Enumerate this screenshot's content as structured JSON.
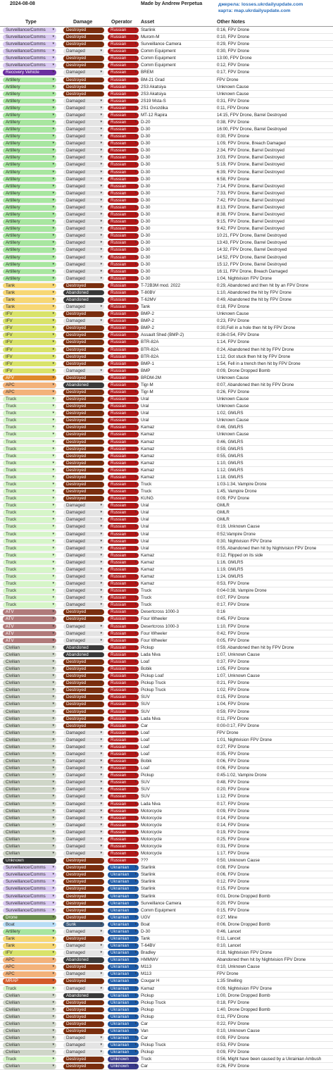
{
  "header": {
    "date": "2024-08-08",
    "author": "Made by Andrew Perpetua",
    "link1": "джерела: losses.ukrdailyupdate.com",
    "link2": "карта: map.ukrdailyupdate.com"
  },
  "columns": [
    "Type",
    "Damage",
    "Operator",
    "Asset",
    "Other Notes"
  ],
  "colors": {
    "type": {
      "Surveillance/Comms": "#d9c9f0",
      "Recovery Vehicle": "#6b2fa0",
      "Artillery": "#a8e6a0",
      "Tank": "#f7d774",
      "IFV": "#d9e36a",
      "AFV": "#e08a2c",
      "APC": "#f3b27a",
      "Truck": "#d6f5c8",
      "ATV": "#b07a7a",
      "Civilian": "#cfd6c8",
      "Unknown": "#333333",
      "Drone": "#6b8e4e",
      "Boat": "#b7dcf5",
      "MRAP": "#d35b2a"
    },
    "damage": {
      "Destroyed": "#7a2e0e",
      "Damaged": "#e4e4e4",
      "Abandoned": "#3a3a3a",
      "Sunk": "#3d5a7a"
    },
    "operator": {
      "Russian": "#b01818",
      "Ukrainian": "#1d5aa6",
      "Unknown": "#3a3a8a"
    }
  },
  "rows": [
    [
      "Surveillance/Comms",
      "Destroyed",
      "Russian",
      "Starlink",
      "0:16, FPV Drone"
    ],
    [
      "Surveillance/Comms",
      "Destroyed",
      "Russian",
      "Murom-M",
      "0:10, FPV Drone"
    ],
    [
      "Surveillance/Comms",
      "Destroyed",
      "Russian",
      "Surveillance Camera",
      "0:29, FPV Drone"
    ],
    [
      "Surveillance/Comms",
      "Damaged",
      "Russian",
      "Comm Equipment",
      "0:30, FPV Drone"
    ],
    [
      "Surveillance/Comms",
      "Destroyed",
      "Russian",
      "Comm Equipment",
      "13:00, FPV Drone"
    ],
    [
      "Surveillance/Comms",
      "Destroyed",
      "Russian",
      "Comm Equipment",
      "0:12, FPV Drone"
    ],
    [
      "Recovery Vehicle",
      "Damaged",
      "Russian",
      "BREM",
      "0:17, FPV Drone"
    ],
    [
      "Artillery",
      "Destroyed",
      "Russian",
      "BM-21 Grad",
      "FPV Drone"
    ],
    [
      "Artillery",
      "Destroyed",
      "Russian",
      "2S3 Akatsiya",
      "Unknown Cause"
    ],
    [
      "Artillery",
      "Destroyed",
      "Russian",
      "2S3 Akatsiya",
      "Unknown Cause"
    ],
    [
      "Artillery",
      "Damaged",
      "Russian",
      "2S19 Msta-S",
      "0:31, FPV Drone"
    ],
    [
      "Artillery",
      "Damaged",
      "Russian",
      "2S1 Gvozdika",
      "0:11, FPV Drone"
    ],
    [
      "Artillery",
      "Damaged",
      "Russian",
      "MT-12 Rapira",
      "14:15, FPV Drone, Barrel Destroyed"
    ],
    [
      "Artillery",
      "Damaged",
      "Russian",
      "D-20",
      "0:38, FPV Drone"
    ],
    [
      "Artillery",
      "Damaged",
      "Russian",
      "D-30",
      "16:00, FPV Drone, Barrel Destroyed"
    ],
    [
      "Artillery",
      "Damaged",
      "Russian",
      "D-30",
      "0:30, FPV Drone"
    ],
    [
      "Artillery",
      "Damaged",
      "Russian",
      "D-30",
      "1:09, FPV Drone, Breach Damaged"
    ],
    [
      "Artillery",
      "Damaged",
      "Russian",
      "D-30",
      "2:34, FPV Drone, Barrel Destroyed"
    ],
    [
      "Artillery",
      "Damaged",
      "Russian",
      "D-30",
      "3:03, FPV Drone, Barrel Destroyed"
    ],
    [
      "Artillery",
      "Damaged",
      "Russian",
      "D-30",
      "5:19, FPV Drone, Barrel Destroyed"
    ],
    [
      "Artillery",
      "Damaged",
      "Russian",
      "D-30",
      "6:39, FPV Drone, Barrel Destroyed"
    ],
    [
      "Artillery",
      "Damaged",
      "Russian",
      "D-30",
      "6:58, FPV Drone"
    ],
    [
      "Artillery",
      "Damaged",
      "Russian",
      "D-30",
      "7:14, FPV Drone, Barrel Destroyed"
    ],
    [
      "Artillery",
      "Damaged",
      "Russian",
      "D-30",
      "7:33, FPV Drone, Barrel Destroyed"
    ],
    [
      "Artillery",
      "Damaged",
      "Russian",
      "D-30",
      "7:42, FPV Drone, Barrel Destroyed"
    ],
    [
      "Artillery",
      "Damaged",
      "Russian",
      "D-30",
      "8:13, FPV Drone, Barrel Destroyed"
    ],
    [
      "Artillery",
      "Damaged",
      "Russian",
      "D-30",
      "8:38, FPV Drone, Barrel Destroyed"
    ],
    [
      "Artillery",
      "Damaged",
      "Russian",
      "D-30",
      "9:15, FPV Drone, Barrel Destroyed"
    ],
    [
      "Artillery",
      "Damaged",
      "Russian",
      "D-30",
      "9:42, FPV Drone, Barrel Destroyed"
    ],
    [
      "Artillery",
      "Damaged",
      "Russian",
      "D-30",
      "10:21, FPV Drone, Barrel Destroyed"
    ],
    [
      "Artillery",
      "Damaged",
      "Russian",
      "D-30",
      "13:43, FPV Drone, Barrel Destroyed"
    ],
    [
      "Artillery",
      "Damaged",
      "Russian",
      "D-30",
      "14:32, FPV Drone, Barrel Destroyed"
    ],
    [
      "Artillery",
      "Damaged",
      "Russian",
      "D-30",
      "14:52, FPV Drone, Barrel Destroyed"
    ],
    [
      "Artillery",
      "Damaged",
      "Russian",
      "D-30",
      "15:12, FPV Drone, Barrel Destroyed"
    ],
    [
      "Artillery",
      "Damaged",
      "Russian",
      "D-30",
      "16:11, FPV Drone, Breach Damaged"
    ],
    [
      "Artillery",
      "Damaged",
      "Russian",
      "D-30",
      "1:04, Nightvision FPV Drone"
    ],
    [
      "Tank",
      "Destroyed",
      "Russian",
      "T-72B3M mod. 2022",
      "0:29, Abandoned and then hit by an FPV Drone"
    ],
    [
      "Tank",
      "Abandoned",
      "Russian",
      "T-80BV",
      "1:10, Abandoned the hit by FPV Drone"
    ],
    [
      "Tank",
      "Abandoned",
      "Russian",
      "T-62MV",
      "0:49, Abandoned the hit by FPV Drone"
    ],
    [
      "Tank",
      "Damaged",
      "Russian",
      "Tank",
      "0:18, FPV Drone"
    ],
    [
      "IFV",
      "Destroyed",
      "Russian",
      "BMP-2",
      "Unknown Cause"
    ],
    [
      "IFV",
      "Damaged",
      "Russian",
      "BMP-2",
      "0:23, FPV Drone"
    ],
    [
      "IFV",
      "Destroyed",
      "Russian",
      "BMP-2",
      "0:30,Fell in a hole then hit by FPV Drone"
    ],
    [
      "IFV",
      "Destroyed",
      "Russian",
      "Assault Shed (BMP-2)",
      "0:36-0:54, FPV Drone"
    ],
    [
      "IFV",
      "Destroyed",
      "Russian",
      "BTR-82A",
      "1:14, FPV Drone"
    ],
    [
      "IFV",
      "Destroyed",
      "Russian",
      "BTR-82A",
      "0:24, Abandoned then hit by FPV Drone"
    ],
    [
      "IFV",
      "Destroyed",
      "Russian",
      "BTR-82A",
      "1:12, Got stuck then hit by FPV Drone"
    ],
    [
      "IFV",
      "Destroyed",
      "Russian",
      "BMP-1",
      "1:54, Fell in a trench then hit by FPV Drone"
    ],
    [
      "IFV",
      "Damaged",
      "Russian",
      "BMP",
      "0:09, Drone Dropped Bomb"
    ],
    [
      "AFV",
      "Destroyed",
      "Russian",
      "BRDM-2M",
      "Unknown Cause"
    ],
    [
      "APC",
      "Abandoned",
      "Russian",
      "Tigr-M",
      "0:07, Abandoned then hit by FPV Drone"
    ],
    [
      "APC",
      "Destroyed",
      "Russian",
      "Tigr-M",
      "0:26, FPV Drone"
    ],
    [
      "Truck",
      "Destroyed",
      "Russian",
      "Ural",
      "Unknown Cause"
    ],
    [
      "Truck",
      "Destroyed",
      "Russian",
      "Ural",
      "Unknown Cause"
    ],
    [
      "Truck",
      "Destroyed",
      "Russian",
      "Ural",
      "1:02, GMLRS"
    ],
    [
      "Truck",
      "Destroyed",
      "Russian",
      "Ural",
      "Unknown Cause"
    ],
    [
      "Truck",
      "Destroyed",
      "Russian",
      "Kamaz",
      "0:46, GMLRS"
    ],
    [
      "Truck",
      "Destroyed",
      "Russian",
      "Kamaz",
      "Unknown Cause"
    ],
    [
      "Truck",
      "Destroyed",
      "Russian",
      "Kamaz",
      "0:46, GMLRS"
    ],
    [
      "Truck",
      "Destroyed",
      "Russian",
      "Kamaz",
      "0:59, GMLRS"
    ],
    [
      "Truck",
      "Destroyed",
      "Russian",
      "Kamaz",
      "0:55, GMLRS"
    ],
    [
      "Truck",
      "Destroyed",
      "Russian",
      "Kamaz",
      "1:10, GMLRS"
    ],
    [
      "Truck",
      "Destroyed",
      "Russian",
      "Kamaz",
      "1:12, GMLRS"
    ],
    [
      "Truck",
      "Destroyed",
      "Russian",
      "Kamaz",
      "1:18, GMLRS"
    ],
    [
      "Truck",
      "Destroyed",
      "Russian",
      "Truck",
      "1:03-1:34, Vampire Drone"
    ],
    [
      "Truck",
      "Destroyed",
      "Russian",
      "Truck",
      "1:45, Vampire Drone"
    ],
    [
      "Truck",
      "Destroyed",
      "Russian",
      "KUNG",
      "0:09, FPV Drone"
    ],
    [
      "Truck",
      "Damaged",
      "Russian",
      "Ural",
      "GMLR"
    ],
    [
      "Truck",
      "Damaged",
      "Russian",
      "Ural",
      "GMLR"
    ],
    [
      "Truck",
      "Damaged",
      "Russian",
      "Ural",
      "GMLR"
    ],
    [
      "Truck",
      "Damaged",
      "Russian",
      "Ural",
      "0:19, Unknown Cause"
    ],
    [
      "Truck",
      "Damaged",
      "Russian",
      "Ural",
      "0:52,Vampire Drone"
    ],
    [
      "Truck",
      "Damaged",
      "Russian",
      "Ural",
      "0:30, Nightvision FPV Drone"
    ],
    [
      "Truck",
      "Damaged",
      "Russian",
      "Ural",
      "0:55, Abandoned then hit by Nightvision FPV Drone"
    ],
    [
      "Truck",
      "Damaged",
      "Russian",
      "Kamaz",
      "0:12, Flipped on its side"
    ],
    [
      "Truck",
      "Damaged",
      "Russian",
      "Kamaz",
      "1:16, GMLRS"
    ],
    [
      "Truck",
      "Damaged",
      "Russian",
      "Kamaz",
      "1:19, GMLRS"
    ],
    [
      "Truck",
      "Damaged",
      "Russian",
      "Kamaz",
      "1:24, GMLRS"
    ],
    [
      "Truck",
      "Damaged",
      "Russian",
      "Kamaz",
      "0:53, FPV Drone"
    ],
    [
      "Truck",
      "Damaged",
      "Russian",
      "Truck",
      "0:04-0:38, Vampire Drone"
    ],
    [
      "Truck",
      "Damaged",
      "Russian",
      "Truck",
      "0:07, FPV Drone"
    ],
    [
      "Truck",
      "Damaged",
      "Russian",
      "Truck",
      "0:17, FPV Drone"
    ],
    [
      "ATV",
      "Destroyed",
      "Russian",
      "Desertcross 1000-3",
      "0:16"
    ],
    [
      "ATV",
      "Destroyed",
      "Russian",
      "Four Wheeler",
      "0:45, FPV Drone"
    ],
    [
      "ATV",
      "Damaged",
      "Russian",
      "Desertcross 1000-3",
      "1:10, FPV Drone"
    ],
    [
      "ATV",
      "Damaged",
      "Russian",
      "Four Wheeler",
      "0:42, FPV Drone"
    ],
    [
      "ATV",
      "Damaged",
      "Russian",
      "Four Wheeler",
      "0:05, FPV Drone"
    ],
    [
      "Civilian",
      "Abandoned",
      "Russian",
      "Pickup",
      "0:59, Abandoned then hit by  FPV Drone"
    ],
    [
      "Civilian",
      "Abandoned",
      "Russian",
      "Lada Niva",
      "1:07, Unknown Cause"
    ],
    [
      "Civilian",
      "Destroyed",
      "Russian",
      "Loaf",
      "0:37, FPV Drone"
    ],
    [
      "Civilian",
      "Destroyed",
      "Russian",
      "Bobik",
      "1:05, FPV Drone"
    ],
    [
      "Civilian",
      "Destroyed",
      "Russian",
      "Pickup Loaf",
      "1:07, Unknown Cause"
    ],
    [
      "Civilian",
      "Destroyed",
      "Russian",
      "Pickup Truck",
      "0:21, FPV Drone"
    ],
    [
      "Civilian",
      "Destroyed",
      "Russian",
      "Pickup Truck",
      "1:02, FPV Drone"
    ],
    [
      "Civilian",
      "Destroyed",
      "Russian",
      "SUV",
      "0:15, FPV Drone"
    ],
    [
      "Civilian",
      "Destroyed",
      "Russian",
      "SUV",
      "1:04, FPV Drone"
    ],
    [
      "Civilian",
      "Destroyed",
      "Russian",
      "SUV",
      "0:59, FPV Drone"
    ],
    [
      "Civilian",
      "Destroyed",
      "Russian",
      "Lada Niva",
      "0:11, FPV Drone"
    ],
    [
      "Civilian",
      "Destroyed",
      "Russian",
      "Car",
      "0:00-0:17, FPV Drone"
    ],
    [
      "Civilian",
      "Damaged",
      "Russian",
      "Loaf",
      "FPV Drone"
    ],
    [
      "Civilian",
      "Damaged",
      "Russian",
      "Loaf",
      "1:01, Nightvision FPV Drone"
    ],
    [
      "Civilian",
      "Damaged",
      "Russian",
      "Loaf",
      "0:27, FPV Drone"
    ],
    [
      "Civilian",
      "Damaged",
      "Russian",
      "Loaf",
      "0:35, FPV Drone"
    ],
    [
      "Civilian",
      "Damaged",
      "Russian",
      "Bobik",
      "0:06, FPV Drone"
    ],
    [
      "Civilian",
      "Damaged",
      "Russian",
      "Loaf",
      "0:06, FPV Drone"
    ],
    [
      "Civilian",
      "Damaged",
      "Russian",
      "Pickup",
      "0:45-1:02, Vampire Drone"
    ],
    [
      "Civilian",
      "Damaged",
      "Russian",
      "SUV",
      "0:48, FPV Drone"
    ],
    [
      "Civilian",
      "Damaged",
      "Russian",
      "SUV",
      "0:20, FPV Drone"
    ],
    [
      "Civilian",
      "Damaged",
      "Russian",
      "SUV",
      "1:12, FPV Drone"
    ],
    [
      "Civilian",
      "Damaged",
      "Russian",
      "Lada Niva",
      "0:17, FPV Drone"
    ],
    [
      "Civilian",
      "Damaged",
      "Russian",
      "Motorcycle",
      "0:09, FPV Drone"
    ],
    [
      "Civilian",
      "Damaged",
      "Russian",
      "Motorcycle",
      "0:14, FPV Drone"
    ],
    [
      "Civilian",
      "Damaged",
      "Russian",
      "Motorcycle",
      "0:14, FPV Drone"
    ],
    [
      "Civilian",
      "Damaged",
      "Russian",
      "Motorcycle",
      "0:19, FPV Drone"
    ],
    [
      "Civilian",
      "Damaged",
      "Russian",
      "Motorcycle",
      "0:25, FPV Drone"
    ],
    [
      "Civilian",
      "Damaged",
      "Russian",
      "Motorcycle",
      "0:31, FPV Drone"
    ],
    [
      "Civilian",
      "Damaged",
      "Russian",
      "Motorcycle",
      "1:17, FPV Drone"
    ],
    [
      "Unknown",
      "Destroyed",
      "Russian",
      "???",
      "0:50, Unknown Cause"
    ],
    [
      "Surveillance/Comms",
      "Destroyed",
      "Ukrainian",
      "Starlink",
      "0:08, FPV Drone"
    ],
    [
      "Surveillance/Comms",
      "Destroyed",
      "Ukrainian",
      "Starlink",
      "0:06, FPV Drone"
    ],
    [
      "Surveillance/Comms",
      "Destroyed",
      "Ukrainian",
      "Starlink",
      "0:12, FPV Drone"
    ],
    [
      "Surveillance/Comms",
      "Destroyed",
      "Ukrainian",
      "Starlink",
      "0:15, FPV Drone"
    ],
    [
      "Surveillance/Comms",
      "Destroyed",
      "Ukrainian",
      "Starlink",
      "0:01, Drone Dropped Bomb"
    ],
    [
      "Surveillance/Comms",
      "Destroyed",
      "Ukrainian",
      "Surveillance Camera",
      "0:20, FPV Drone"
    ],
    [
      "Surveillance/Comms",
      "Destroyed",
      "Ukrainian",
      "Comm Equipment",
      "0:15, FPV Drone"
    ],
    [
      "Drone",
      "Destroyed",
      "Ukrainian",
      "UGV",
      "0:27, Mine"
    ],
    [
      "Boat",
      "Sunk",
      "Ukrainian",
      "Boat",
      "0:06, Drone Dropped Bomb"
    ],
    [
      "Artillery",
      "Damaged",
      "Ukrainian",
      "D-30",
      "0:46, Lancet"
    ],
    [
      "Tank",
      "Destroyed",
      "Ukrainian",
      "Tank",
      "0:11, Lancet"
    ],
    [
      "Tank",
      "Damaged",
      "Ukrainian",
      "T-64BV",
      "0:10, Lancet"
    ],
    [
      "IFV",
      "Damaged",
      "Ukrainian",
      "Bradley",
      "0:18, Nightvision FPV Drone"
    ],
    [
      "APC",
      "Abandoned",
      "Ukrainian",
      "HMMWV",
      "Abandoned then hit by Nightvision FPV Drone"
    ],
    [
      "APC",
      "Destroyed",
      "Ukrainian",
      "M113",
      "0:10, Unknown Cause"
    ],
    [
      "APC",
      "Damaged",
      "Ukrainian",
      "M113",
      "FPV Drone"
    ],
    [
      "MRAP",
      "Destroyed",
      "Ukrainian",
      "Cougar H",
      "1:35 Shelling"
    ],
    [
      "Truck",
      "Damaged",
      "Ukrainian",
      "Kamaz",
      "0:09, Nightvision FPV Drone"
    ],
    [
      "Civilian",
      "Abandoned",
      "Ukrainian",
      "Pickup",
      "1:00, Drone Dropped Bomb"
    ],
    [
      "Civilian",
      "Destroyed",
      "Ukrainian",
      "Pickup Truck",
      "0:18, FPV Drone"
    ],
    [
      "Civilian",
      "Destroyed",
      "Ukrainian",
      "Pickup",
      "1:40, Drone Dropped Bomb"
    ],
    [
      "Civilian",
      "Destroyed",
      "Ukrainian",
      "Pickup",
      "0:11, FPV Drone"
    ],
    [
      "Civilian",
      "Destroyed",
      "Ukrainian",
      "Car",
      "0:22, FPV Drone"
    ],
    [
      "Civilian",
      "Destroyed",
      "Ukrainian",
      "Van",
      "0:10, Unknown Cause"
    ],
    [
      "Civilian",
      "Damaged",
      "Ukrainian",
      "Car",
      "0:09, FPV Drone"
    ],
    [
      "Civilian",
      "Damaged",
      "Ukrainian",
      "Pickup Truck",
      "0:53, FPV Drone"
    ],
    [
      "Civilian",
      "Damaged",
      "Ukrainian",
      "Pickup",
      "0:09, FPV Drone"
    ],
    [
      "Truck",
      "Destroyed",
      "Unknown",
      "Truck",
      "0:56, Might have been caused by a Ukrainian Ambush"
    ],
    [
      "Civilian",
      "Destroyed",
      "Unknown",
      "Car",
      "0:26, FPV Drone"
    ]
  ]
}
